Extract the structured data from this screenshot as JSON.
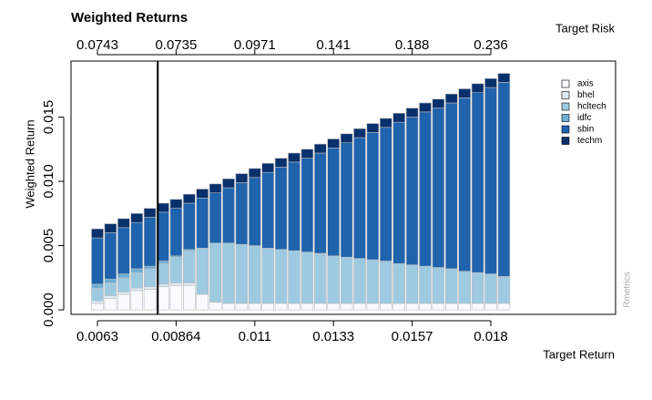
{
  "chart_data": {
    "type": "stacked_bar",
    "title": "Weighted Returns",
    "x_label": "Target Return",
    "x2_label": "Target Risk",
    "y_label": "Weighted Return",
    "watermark": "Rmetrics",
    "categories": [
      "0.0063",
      null,
      null,
      null,
      null,
      null,
      "0.00864",
      null,
      null,
      null,
      null,
      null,
      "0.011",
      null,
      null,
      null,
      null,
      null,
      "0.0133",
      null,
      null,
      null,
      null,
      null,
      "0.0157",
      null,
      null,
      null,
      null,
      null,
      "0.018",
      null
    ],
    "x2_categories": [
      "0.0743",
      null,
      null,
      null,
      null,
      null,
      "0.0735",
      null,
      null,
      null,
      null,
      null,
      "0.0971",
      null,
      null,
      null,
      null,
      null,
      "0.141",
      null,
      null,
      null,
      null,
      null,
      "0.188",
      null,
      null,
      null,
      null,
      null,
      "0.236",
      null
    ],
    "series": [
      {
        "name": "axis",
        "color": "#f7fbff",
        "values": [
          0.0005,
          0.0009,
          0.0012,
          0.0015,
          0.0016,
          0.0018,
          0.0019,
          0.0019,
          0.0012,
          0.0006,
          0.0005,
          0.0005,
          0.0005,
          0.0005,
          0.0005,
          0.0005,
          0.0005,
          0.0005,
          0.0005,
          0.0005,
          0.0005,
          0.0005,
          0.0005,
          0.0005,
          0.0005,
          0.0005,
          0.0005,
          0.0005,
          0.0005,
          0.0005,
          0.0005,
          0.0005
        ]
      },
      {
        "name": "bhel",
        "color": "#deebf7",
        "values": [
          0.0002,
          0.0002,
          0.0002,
          0.0002,
          0.0002,
          0.0002,
          0.0002,
          0.0002,
          0,
          0,
          0,
          0,
          0,
          0,
          0,
          0,
          0,
          0,
          0,
          0,
          0,
          0,
          0,
          0,
          0,
          0,
          0,
          0,
          0,
          0,
          0,
          0
        ]
      },
      {
        "name": "hcltech",
        "color": "#9ecae1",
        "values": [
          0.001,
          0.001,
          0.0011,
          0.0012,
          0.0014,
          0.0016,
          0.002,
          0.0025,
          0.0036,
          0.0046,
          0.0047,
          0.0046,
          0.0045,
          0.0043,
          0.0042,
          0.0041,
          0.004,
          0.0039,
          0.0037,
          0.0036,
          0.0035,
          0.0034,
          0.0033,
          0.0031,
          0.003,
          0.0029,
          0.0028,
          0.0027,
          0.0025,
          0.0024,
          0.0023,
          0.0021
        ]
      },
      {
        "name": "idfc",
        "color": "#6baed6",
        "values": [
          0.0003,
          0.0003,
          0.0003,
          0.0003,
          0.0002,
          0.0002,
          0.0001,
          0.0001,
          0,
          0,
          0,
          0,
          0,
          0,
          0,
          0,
          0,
          0,
          0,
          0,
          0,
          0,
          0,
          0,
          0,
          0,
          0,
          0,
          0,
          0,
          0,
          0
        ]
      },
      {
        "name": "sbin",
        "color": "#1f63ad",
        "values": [
          0.0036,
          0.0036,
          0.0036,
          0.0036,
          0.0038,
          0.0038,
          0.0037,
          0.0036,
          0.0039,
          0.0039,
          0.0043,
          0.0048,
          0.0053,
          0.0059,
          0.0064,
          0.0069,
          0.0073,
          0.0078,
          0.0084,
          0.0089,
          0.0094,
          0.0099,
          0.0104,
          0.011,
          0.0115,
          0.012,
          0.0124,
          0.0129,
          0.0135,
          0.014,
          0.0145,
          0.0151
        ]
      },
      {
        "name": "techm",
        "color": "#08306b",
        "values": [
          0.0007,
          0.0007,
          0.0007,
          0.0007,
          0.0007,
          0.0007,
          0.0007,
          0.0007,
          0.0007,
          0.0007,
          0.0007,
          0.0007,
          0.0007,
          0.0007,
          0.0007,
          0.0007,
          0.0007,
          0.0007,
          0.0007,
          0.0007,
          0.0007,
          0.0007,
          0.0007,
          0.0007,
          0.0007,
          0.0007,
          0.0007,
          0.0007,
          0.0007,
          0.0007,
          0.0007,
          0.0007
        ]
      }
    ],
    "vline_index": 4.6,
    "ylim": [
      -0.00035,
      0.01936
    ],
    "yticks": [
      {
        "value": 0,
        "label": "0.000"
      },
      {
        "value": 0.005,
        "label": "0.005"
      },
      {
        "value": 0.01,
        "label": "0.010"
      },
      {
        "value": 0.015,
        "label": "0.015"
      }
    ],
    "legend": "top-right"
  }
}
